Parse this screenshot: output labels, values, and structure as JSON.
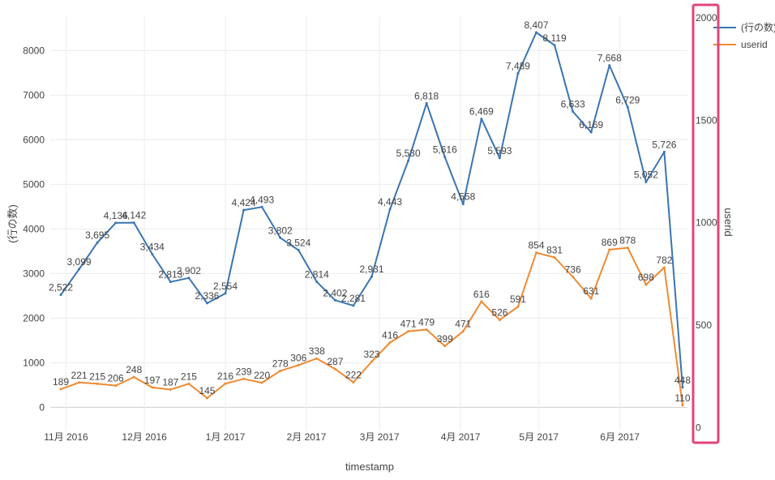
{
  "chart_data": {
    "type": "line",
    "xlabel": "timestamp",
    "ylabel": "(行の数)",
    "y2label": "userid",
    "x_ticks": [
      "11月 2016",
      "12月 2016",
      "1月 2017",
      "2月 2017",
      "3月 2017",
      "4月 2017",
      "5月 2017",
      "6月 2017"
    ],
    "y_ticks": [
      "0",
      "1000",
      "2000",
      "3000",
      "4000",
      "5000",
      "6000",
      "7000",
      "8000"
    ],
    "y2_ticks": [
      "0",
      "500",
      "1000",
      "1500",
      "2000"
    ],
    "ylim": [
      -520,
      8770
    ],
    "y2lim": [
      -13,
      2007
    ],
    "grid": true,
    "legend_position": "top-right",
    "x": [
      "2016-10-30",
      "2016-11-06",
      "2016-11-13",
      "2016-11-20",
      "2016-11-27",
      "2016-12-04",
      "2016-12-11",
      "2016-12-18",
      "2016-12-25",
      "2017-01-01",
      "2017-01-08",
      "2017-01-15",
      "2017-01-22",
      "2017-01-29",
      "2017-02-05",
      "2017-02-12",
      "2017-02-19",
      "2017-02-26",
      "2017-03-05",
      "2017-03-12",
      "2017-03-19",
      "2017-03-26",
      "2017-04-02",
      "2017-04-09",
      "2017-04-16",
      "2017-04-23",
      "2017-04-30",
      "2017-05-07",
      "2017-05-14",
      "2017-05-21",
      "2017-05-28",
      "2017-06-04",
      "2017-06-11",
      "2017-06-18",
      "2017-06-25"
    ],
    "series": [
      {
        "name": "(行の数)",
        "axis": "y",
        "color": "#3a75b0",
        "values": [
          2522,
          3099,
          3695,
          4136,
          4142,
          3434,
          2813,
          2902,
          2336,
          2554,
          4424,
          4493,
          3802,
          3524,
          2814,
          2402,
          2281,
          2931,
          4443,
          5530,
          6818,
          5616,
          4558,
          6469,
          5593,
          7489,
          8407,
          8119,
          6633,
          6169,
          7668,
          6729,
          5052,
          5726,
          448
        ],
        "labels": [
          "2,522",
          "3,099",
          "3,695",
          "4,136",
          "4,142",
          "3,434",
          "2,813",
          "2,902",
          "2,336",
          "2,554",
          "4,424",
          "4,493",
          "3,802",
          "3,524",
          "2,814",
          "2,402",
          "2,281",
          "2,931",
          "4,443",
          "5,530",
          "6,818",
          "5,616",
          "4,558",
          "6,469",
          "5,593",
          "7,489",
          "8,407",
          "8,119",
          "6,633",
          "6,169",
          "7,668",
          "6,729",
          "5,052",
          "5,726",
          "448"
        ]
      },
      {
        "name": "userid",
        "axis": "y2",
        "color": "#ef8a32",
        "values": [
          189,
          221,
          215,
          206,
          248,
          197,
          187,
          215,
          145,
          216,
          239,
          220,
          278,
          306,
          338,
          287,
          222,
          323,
          416,
          471,
          479,
          399,
          471,
          616,
          526,
          591,
          854,
          831,
          736,
          631,
          869,
          878,
          698,
          782,
          110
        ],
        "labels": [
          "189",
          "221",
          "215",
          "206",
          "248",
          "197",
          "187",
          "215",
          "145",
          "216",
          "239",
          "220",
          "278",
          "306",
          "338",
          "287",
          "222",
          "323",
          "416",
          "471",
          "479",
          "399",
          "471",
          "616",
          "526",
          "591",
          "854",
          "831",
          "736",
          "631",
          "869",
          "878",
          "698",
          "782",
          "110"
        ]
      }
    ],
    "highlight": {
      "target": "y2-axis",
      "color": "#e0457b"
    }
  }
}
